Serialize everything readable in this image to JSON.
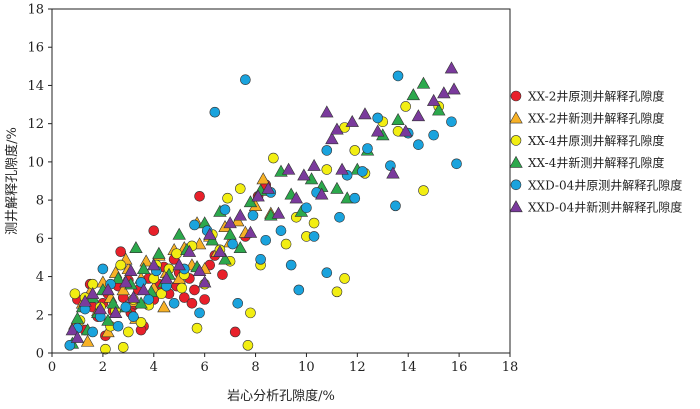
{
  "chart_data": {
    "type": "scatter",
    "xlabel": "岩心分析孔隙度/%",
    "ylabel": "测井解释孔隙度/%",
    "xlim": [
      0,
      18
    ],
    "ylim": [
      0,
      18
    ],
    "xticks": [
      "0",
      "2",
      "4",
      "6",
      "8",
      "10",
      "12",
      "14",
      "16",
      "18"
    ],
    "yticks": [
      "0",
      "2",
      "4",
      "6",
      "8",
      "10",
      "12",
      "14",
      "16",
      "18"
    ],
    "grid": false,
    "legend_position": "right",
    "series": [
      {
        "name": "XX-2井原测井解释孔隙度",
        "marker": "circle",
        "color": "#e8202a",
        "points": [
          [
            1,
            2.8
          ],
          [
            1.3,
            1.2
          ],
          [
            1.6,
            2.4
          ],
          [
            1.8,
            1.9
          ],
          [
            2,
            2.6
          ],
          [
            2.2,
            3.1
          ],
          [
            2.4,
            2.2
          ],
          [
            2.6,
            3.5
          ],
          [
            2.8,
            2.9
          ],
          [
            3,
            3.8
          ],
          [
            3.2,
            2.5
          ],
          [
            3.4,
            3.3
          ],
          [
            3.6,
            1.4
          ],
          [
            3.8,
            3.9
          ],
          [
            4,
            2.8
          ],
          [
            4.2,
            3.6
          ],
          [
            4.4,
            4.5
          ],
          [
            4.6,
            3.1
          ],
          [
            4.8,
            4.9
          ],
          [
            5,
            4.2
          ],
          [
            5.2,
            2.9
          ],
          [
            5.4,
            3.9
          ],
          [
            5.6,
            3.3
          ],
          [
            5.8,
            8.2
          ],
          [
            6,
            2.8
          ],
          [
            6.2,
            4.6
          ],
          [
            6.4,
            5.1
          ],
          [
            3.5,
            1.2
          ],
          [
            2.7,
            5.3
          ],
          [
            4,
            6.4
          ],
          [
            7.2,
            1.1
          ],
          [
            7.6,
            6.1
          ],
          [
            8.1,
            8.2
          ],
          [
            8.4,
            8.8
          ],
          [
            2.1,
            0.9
          ],
          [
            1.5,
            3.6
          ],
          [
            3.1,
            2.1
          ],
          [
            4.9,
            3.5
          ],
          [
            5.5,
            2.6
          ],
          [
            6.7,
            4.1
          ]
        ]
      },
      {
        "name": "XX-2井新测井解释孔隙度",
        "marker": "triangle",
        "color": "#f7b126",
        "points": [
          [
            0.9,
            1.5
          ],
          [
            1.2,
            2.6
          ],
          [
            1.5,
            3.2
          ],
          [
            1.8,
            2.2
          ],
          [
            2,
            3.7
          ],
          [
            2.3,
            2.9
          ],
          [
            2.5,
            4.2
          ],
          [
            2.8,
            3.3
          ],
          [
            3,
            4.4
          ],
          [
            3.2,
            2.7
          ],
          [
            3.5,
            3.9
          ],
          [
            3.7,
            4.8
          ],
          [
            4,
            3.4
          ],
          [
            4.2,
            5.1
          ],
          [
            4.5,
            4.2
          ],
          [
            4.8,
            5.4
          ],
          [
            5,
            3.9
          ],
          [
            5.2,
            5.5
          ],
          [
            5.5,
            4.6
          ],
          [
            5.8,
            5.7
          ],
          [
            6,
            4.4
          ],
          [
            6.2,
            6.1
          ],
          [
            6.5,
            5.3
          ],
          [
            6.8,
            6.6
          ],
          [
            7,
            5.8
          ],
          [
            7.3,
            6.9
          ],
          [
            7.6,
            6.3
          ],
          [
            8,
            7.7
          ],
          [
            8.3,
            9.1
          ],
          [
            8.6,
            7.3
          ],
          [
            2.2,
            1.1
          ],
          [
            3.3,
            1.8
          ],
          [
            4.4,
            2.4
          ],
          [
            1.4,
            0.6
          ],
          [
            2.9,
            4.9
          ],
          [
            5.7,
            6.8
          ]
        ]
      },
      {
        "name": "XX-4井原测井解释孔隙度",
        "marker": "circle",
        "color": "#f2ee12",
        "points": [
          [
            0.9,
            3.1
          ],
          [
            1.1,
            1.7
          ],
          [
            1.3,
            2.9
          ],
          [
            1.6,
            3.6
          ],
          [
            1.9,
            2.4
          ],
          [
            2.1,
            0.2
          ],
          [
            2.3,
            1.4
          ],
          [
            2.5,
            2.2
          ],
          [
            2.8,
            0.3
          ],
          [
            3,
            1.1
          ],
          [
            3.2,
            2.8
          ],
          [
            3.5,
            1.6
          ],
          [
            3.8,
            2.5
          ],
          [
            4,
            3.9
          ],
          [
            4.3,
            3.1
          ],
          [
            4.6,
            4.4
          ],
          [
            4.9,
            5.2
          ],
          [
            5.2,
            4.1
          ],
          [
            5.5,
            5.6
          ],
          [
            5.7,
            1.3
          ],
          [
            6,
            3.6
          ],
          [
            6.3,
            6.2
          ],
          [
            6.6,
            5.4
          ],
          [
            7,
            4.8
          ],
          [
            7.4,
            8.6
          ],
          [
            7.8,
            2.1
          ],
          [
            7.7,
            0.4
          ],
          [
            8.2,
            4.6
          ],
          [
            8.7,
            10.2
          ],
          [
            9.2,
            5.7
          ],
          [
            9.6,
            7.1
          ],
          [
            10,
            6.1
          ],
          [
            10.3,
            6.8
          ],
          [
            10.8,
            9.6
          ],
          [
            11.2,
            3.2
          ],
          [
            11.5,
            3.9
          ],
          [
            11.5,
            11.8
          ],
          [
            11.9,
            10.6
          ],
          [
            12.3,
            9.4
          ],
          [
            13,
            12.1
          ],
          [
            13.6,
            11.6
          ],
          [
            13.9,
            12.9
          ],
          [
            14.6,
            8.5
          ],
          [
            15.2,
            12.9
          ],
          [
            2.7,
            4.6
          ],
          [
            4.1,
            4.6
          ],
          [
            5.1,
            3.4
          ],
          [
            6.9,
            8.1
          ]
        ]
      },
      {
        "name": "XX-4井新测井解释孔隙度",
        "marker": "triangle",
        "color": "#2ca84c",
        "points": [
          [
            0.8,
            0.5
          ],
          [
            1,
            1.8
          ],
          [
            1.2,
            2.4
          ],
          [
            1.4,
            1.2
          ],
          [
            1.6,
            2.9
          ],
          [
            1.8,
            2.1
          ],
          [
            2,
            3.3
          ],
          [
            2.2,
            1.7
          ],
          [
            2.4,
            2.6
          ],
          [
            2.6,
            3.9
          ],
          [
            2.9,
            2.4
          ],
          [
            3.1,
            3.6
          ],
          [
            3.3,
            5.5
          ],
          [
            3.6,
            4.4
          ],
          [
            3.9,
            3.2
          ],
          [
            4.2,
            5.2
          ],
          [
            4.6,
            4.1
          ],
          [
            5,
            6.2
          ],
          [
            5.3,
            5.4
          ],
          [
            5.7,
            4.5
          ],
          [
            6,
            6.8
          ],
          [
            6.3,
            5.9
          ],
          [
            6.6,
            7.4
          ],
          [
            7,
            6.2
          ],
          [
            7.4,
            5.5
          ],
          [
            7.8,
            7.9
          ],
          [
            8.2,
            8.5
          ],
          [
            8.6,
            7.2
          ],
          [
            9,
            9.5
          ],
          [
            9.4,
            8.3
          ],
          [
            9.8,
            7.4
          ],
          [
            10.2,
            9.1
          ],
          [
            10.6,
            8.7
          ],
          [
            11.2,
            8.6
          ],
          [
            11.6,
            8.1
          ],
          [
            12,
            9.6
          ],
          [
            12.4,
            10.6
          ],
          [
            13,
            11.4
          ],
          [
            13.6,
            12.2
          ],
          [
            14.2,
            13.5
          ],
          [
            14.6,
            14.1
          ],
          [
            15.2,
            12.7
          ],
          [
            3.5,
            2.6
          ],
          [
            4.4,
            3.7
          ],
          [
            6.8,
            4.9
          ]
        ]
      },
      {
        "name": "XXD-04井原测井解释孔隙度",
        "marker": "circle",
        "color": "#1aa3dd",
        "points": [
          [
            0.7,
            0.4
          ],
          [
            1,
            1.3
          ],
          [
            1.3,
            2.3
          ],
          [
            1.6,
            1.1
          ],
          [
            1.9,
            1.9
          ],
          [
            2,
            4.4
          ],
          [
            2.3,
            3.6
          ],
          [
            2.6,
            1.4
          ],
          [
            2.9,
            2.4
          ],
          [
            3.2,
            1.9
          ],
          [
            3.5,
            3.7
          ],
          [
            3.8,
            2.8
          ],
          [
            4.1,
            4.3
          ],
          [
            4.5,
            3.5
          ],
          [
            4.8,
            2.6
          ],
          [
            5.2,
            4.4
          ],
          [
            5.6,
            6.7
          ],
          [
            5.8,
            2.1
          ],
          [
            6.1,
            6.4
          ],
          [
            6.4,
            12.6
          ],
          [
            6.8,
            7.5
          ],
          [
            7.1,
            5.7
          ],
          [
            7.3,
            2.6
          ],
          [
            7.6,
            14.3
          ],
          [
            7.9,
            7.2
          ],
          [
            8.2,
            4.9
          ],
          [
            8.6,
            8.4
          ],
          [
            9,
            6.4
          ],
          [
            9.4,
            4.6
          ],
          [
            9.7,
            3.3
          ],
          [
            10,
            7.6
          ],
          [
            10.4,
            8.4
          ],
          [
            10.8,
            10.6
          ],
          [
            10.8,
            4.2
          ],
          [
            11.3,
            7.1
          ],
          [
            11.6,
            9.3
          ],
          [
            11.9,
            8.1
          ],
          [
            12.4,
            10.7
          ],
          [
            12.8,
            12.3
          ],
          [
            13.3,
            9.8
          ],
          [
            13.5,
            7.7
          ],
          [
            13.6,
            14.5
          ],
          [
            14,
            11.5
          ],
          [
            14.4,
            10.9
          ],
          [
            15,
            11.4
          ],
          [
            15.7,
            12.1
          ],
          [
            15.9,
            9.9
          ],
          [
            8.4,
            5.9
          ],
          [
            10.3,
            6.1
          ],
          [
            12.2,
            9.5
          ]
        ]
      },
      {
        "name": "XXD-04井新测井解释孔隙度",
        "marker": "triangle",
        "color": "#7a3a9c",
        "points": [
          [
            0.8,
            1.2
          ],
          [
            1,
            0.8
          ],
          [
            1.3,
            2.7
          ],
          [
            1.6,
            3.1
          ],
          [
            1.9,
            2.3
          ],
          [
            2.2,
            3.3
          ],
          [
            2.5,
            2.1
          ],
          [
            2.9,
            3.7
          ],
          [
            3.2,
            2.9
          ],
          [
            3.6,
            3.3
          ],
          [
            4,
            4.6
          ],
          [
            4.5,
            3.9
          ],
          [
            5,
            4.6
          ],
          [
            5.4,
            5.3
          ],
          [
            5.8,
            4.3
          ],
          [
            6.2,
            6.2
          ],
          [
            6.6,
            5.3
          ],
          [
            7,
            6.8
          ],
          [
            7.4,
            7.2
          ],
          [
            7.8,
            6.3
          ],
          [
            8.1,
            8.2
          ],
          [
            8.5,
            8.6
          ],
          [
            8.9,
            7.3
          ],
          [
            9.3,
            9.6
          ],
          [
            9.6,
            8.1
          ],
          [
            9.9,
            9.3
          ],
          [
            10.3,
            9.8
          ],
          [
            10.6,
            8.3
          ],
          [
            11,
            11.2
          ],
          [
            11.4,
            9.6
          ],
          [
            11.8,
            12.1
          ],
          [
            12.3,
            12.5
          ],
          [
            12.8,
            11.6
          ],
          [
            13.4,
            9.4
          ],
          [
            13.9,
            11.6
          ],
          [
            14.4,
            12.4
          ],
          [
            15,
            13.2
          ],
          [
            15.4,
            13.6
          ],
          [
            15.7,
            14.9
          ],
          [
            15.8,
            13.8
          ],
          [
            10.8,
            12.6
          ],
          [
            11.2,
            11.7
          ],
          [
            3.1,
            4.3
          ],
          [
            6,
            3.7
          ]
        ]
      }
    ]
  }
}
